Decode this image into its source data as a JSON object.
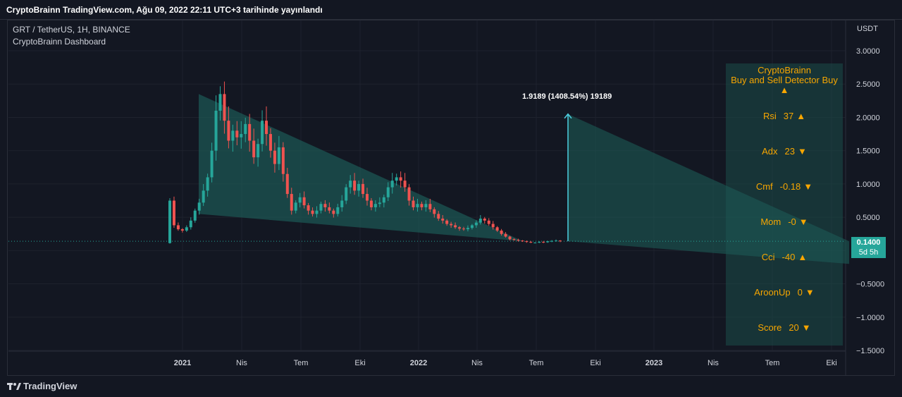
{
  "header": {
    "title": "CryptoBrainn TradingView.com, Ağu 09, 2022 22:11 UTC+3 tarihinde yayınlandı"
  },
  "legend": {
    "symbol": "GRT / TetherUS, 1H, BINANCE",
    "indicator": "CryptoBrainn Dashboard"
  },
  "price_axis": {
    "unit": "USDT"
  },
  "price_tag": {
    "value": "0.1400",
    "countdown": "5d 5h"
  },
  "projection": {
    "label": "1.9189 (1408.54%) 19189"
  },
  "indicator_panel": {
    "title_line1": "CryptoBrainn",
    "title_line2": "Buy and Sell Detector  Buy",
    "title_arrow": "▲",
    "rows": [
      {
        "name": "Rsi",
        "value": "37",
        "arrow": "▲"
      },
      {
        "name": "Adx",
        "value": "23",
        "arrow": "▼"
      },
      {
        "name": "Cmf",
        "value": "-0.18",
        "arrow": "▼"
      },
      {
        "name": "Mom",
        "value": "-0",
        "arrow": "▼"
      },
      {
        "name": "Cci",
        "value": "-40",
        "arrow": "▲"
      },
      {
        "name": "AroonUp",
        "value": "0",
        "arrow": "▼"
      },
      {
        "name": "Score",
        "value": "20",
        "arrow": "▼"
      }
    ]
  },
  "footer": {
    "brand": "TradingView"
  },
  "colors": {
    "up": "#26a69a",
    "down": "#ef5350",
    "accent": "#f7a600",
    "wedge": "#1d5a55"
  },
  "chart_data": {
    "type": "candlestick",
    "symbol": "GRT/USDT",
    "ylim": [
      -1.5,
      3.0
    ],
    "y_ticks": [
      "3.0000",
      "2.5000",
      "2.0000",
      "1.5000",
      "1.0000",
      "0.5000",
      "0.1400",
      "-0.5000",
      "-1.0000",
      "-1.5000"
    ],
    "x_tick_labels": [
      "2021",
      "Nis",
      "Tem",
      "Eki",
      "2022",
      "Nis",
      "Tem",
      "Eki",
      "2023",
      "Nis",
      "Tem",
      "Eki"
    ],
    "last_price": 0.14,
    "closes": [
      0.75,
      0.38,
      0.32,
      0.3,
      0.35,
      0.45,
      0.6,
      0.72,
      0.9,
      1.1,
      1.5,
      2.1,
      2.35,
      1.95,
      1.65,
      1.8,
      1.7,
      1.75,
      1.9,
      1.65,
      1.4,
      1.6,
      1.95,
      1.75,
      1.5,
      1.3,
      1.55,
      1.15,
      0.85,
      0.6,
      0.72,
      0.8,
      0.68,
      0.6,
      0.55,
      0.6,
      0.7,
      0.65,
      0.6,
      0.55,
      0.65,
      0.75,
      0.95,
      1.05,
      0.9,
      1.0,
      0.85,
      0.75,
      0.65,
      0.7,
      0.72,
      0.8,
      0.95,
      1.05,
      1.1,
      1.05,
      0.95,
      0.75,
      0.65,
      0.7,
      0.65,
      0.7,
      0.62,
      0.55,
      0.48,
      0.45,
      0.4,
      0.38,
      0.35,
      0.33,
      0.32,
      0.34,
      0.38,
      0.42,
      0.48,
      0.45,
      0.4,
      0.35,
      0.3,
      0.25,
      0.21,
      0.17,
      0.16,
      0.15,
      0.14,
      0.13,
      0.12,
      0.12,
      0.13,
      0.125,
      0.14,
      0.145,
      0.15,
      0.14
    ],
    "projection": {
      "target": 1.9189,
      "change_pct": 1408.54
    },
    "indicator_table": "CryptoBrainn Buy and Sell Detector"
  }
}
